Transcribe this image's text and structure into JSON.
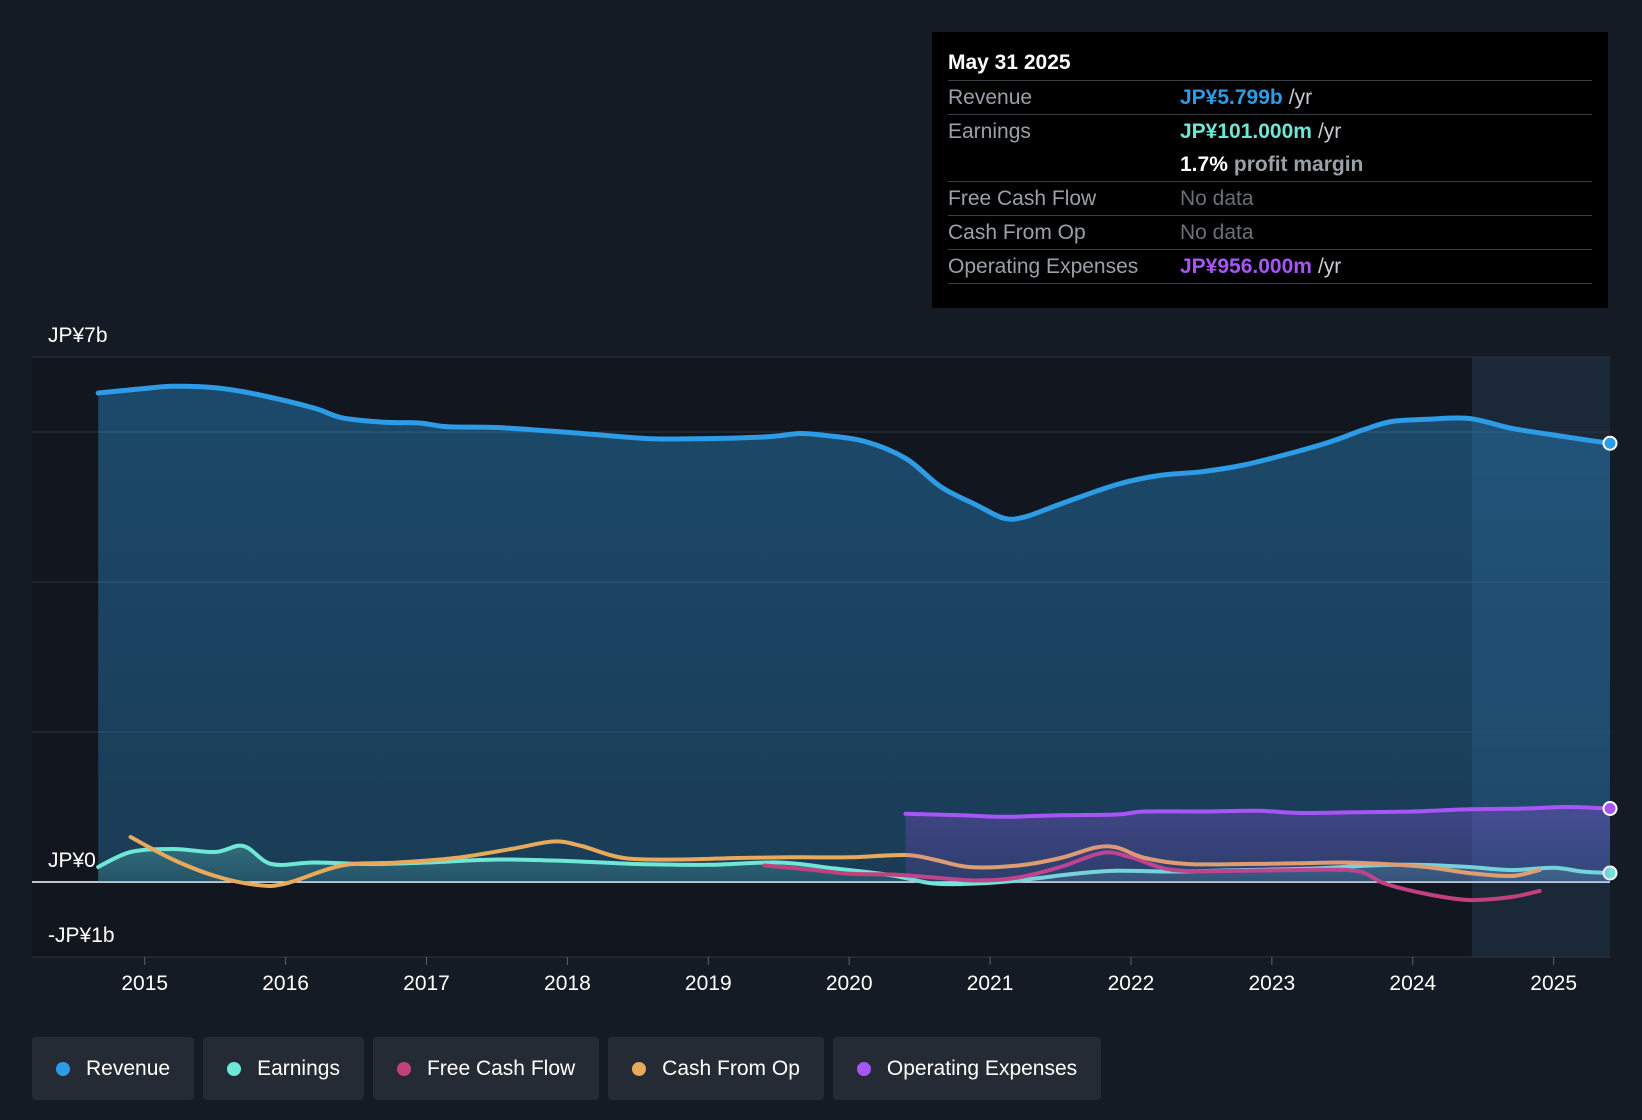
{
  "tooltip": {
    "date": "May 31 2025",
    "rows": [
      {
        "label": "Revenue",
        "value": "JP¥5.799b",
        "unit": "/yr",
        "color": "#2d9be5"
      },
      {
        "label": "Earnings",
        "value": "JP¥101.000m",
        "unit": "/yr",
        "color": "#6ee7d6"
      },
      {
        "label": "",
        "value": "1.7%",
        "unit": "profit margin",
        "color": "#ffffff"
      },
      {
        "label": "Free Cash Flow",
        "value": "No data",
        "unit": "",
        "color": "#6b7078"
      },
      {
        "label": "Cash From Op",
        "value": "No data",
        "unit": "",
        "color": "#6b7078"
      },
      {
        "label": "Operating Expenses",
        "value": "JP¥956.000m",
        "unit": "/yr",
        "color": "#a855f7"
      }
    ]
  },
  "legend": [
    {
      "label": "Revenue",
      "color": "#2d9be5"
    },
    {
      "label": "Earnings",
      "color": "#6ee7d6"
    },
    {
      "label": "Free Cash Flow",
      "color": "#c2417c"
    },
    {
      "label": "Cash From Op",
      "color": "#e8a95a"
    },
    {
      "label": "Operating Expenses",
      "color": "#a855f7"
    }
  ],
  "chart_data": {
    "type": "line",
    "title": "",
    "xlabel": "",
    "ylabel": "",
    "ylim": [
      -1.0,
      7.0
    ],
    "xlim": [
      2014.2,
      2025.4
    ],
    "y_axis_labels": [
      {
        "value": 7,
        "label": "JP¥7b"
      },
      {
        "value": 0,
        "label": "JP¥0"
      },
      {
        "value": -1,
        "label": "-JP¥1b"
      }
    ],
    "gridlines": [
      7,
      6,
      4,
      2,
      0,
      -1
    ],
    "x_ticks": [
      2015,
      2016,
      2017,
      2018,
      2019,
      2020,
      2021,
      2022,
      2023,
      2024,
      2025
    ],
    "x_tick_labels": [
      "2015",
      "2016",
      "2017",
      "2018",
      "2019",
      "2020",
      "2021",
      "2022",
      "2023",
      "2024",
      "2025"
    ],
    "forecast_start": 2024.42,
    "series": [
      {
        "name": "Revenue",
        "color": "#2d9be5",
        "area": true,
        "end_marker": true,
        "x": [
          2014.67,
          2015.0,
          2015.2,
          2015.5,
          2015.8,
          2016.2,
          2016.4,
          2016.7,
          2016.95,
          2017.15,
          2017.5,
          2017.9,
          2018.3,
          2018.6,
          2018.9,
          2019.2,
          2019.45,
          2019.65,
          2019.8,
          2020.1,
          2020.4,
          2020.65,
          2020.9,
          2021.1,
          2021.25,
          2021.5,
          2021.9,
          2022.2,
          2022.5,
          2022.8,
          2023.1,
          2023.4,
          2023.65,
          2023.85,
          2024.1,
          2024.4,
          2024.7,
          2025.0,
          2025.25,
          2025.4
        ],
        "values": [
          6.52,
          6.58,
          6.61,
          6.59,
          6.5,
          6.32,
          6.19,
          6.13,
          6.12,
          6.07,
          6.06,
          6.01,
          5.95,
          5.91,
          5.91,
          5.92,
          5.94,
          5.98,
          5.96,
          5.88,
          5.65,
          5.27,
          5.03,
          4.85,
          4.87,
          5.04,
          5.3,
          5.42,
          5.47,
          5.56,
          5.7,
          5.86,
          6.03,
          6.14,
          6.17,
          6.18,
          6.05,
          5.96,
          5.89,
          5.85
        ]
      },
      {
        "name": "Earnings",
        "color": "#6ee7d6",
        "area": true,
        "end_marker": true,
        "x": [
          2014.67,
          2014.9,
          2015.2,
          2015.5,
          2015.7,
          2015.9,
          2016.2,
          2016.6,
          2017.0,
          2017.5,
          2018.0,
          2018.5,
          2019.0,
          2019.5,
          2019.9,
          2020.3,
          2020.6,
          2020.9,
          2021.2,
          2021.6,
          2021.9,
          2022.3,
          2022.8,
          2023.3,
          2023.7,
          2024.0,
          2024.4,
          2024.7,
          2025.0,
          2025.2,
          2025.4
        ],
        "values": [
          0.2,
          0.4,
          0.44,
          0.4,
          0.48,
          0.24,
          0.26,
          0.24,
          0.26,
          0.3,
          0.28,
          0.24,
          0.23,
          0.26,
          0.18,
          0.09,
          -0.02,
          -0.02,
          0.02,
          0.11,
          0.15,
          0.14,
          0.16,
          0.18,
          0.22,
          0.23,
          0.2,
          0.16,
          0.19,
          0.14,
          0.12
        ]
      },
      {
        "name": "Free Cash Flow",
        "color": "#c2417c",
        "area": false,
        "end_marker": false,
        "x": [
          2019.4,
          2019.7,
          2020.0,
          2020.3,
          2020.6,
          2020.9,
          2021.2,
          2021.5,
          2021.8,
          2022.0,
          2022.3,
          2022.8,
          2023.2,
          2023.6,
          2023.8,
          2024.1,
          2024.4,
          2024.7,
          2024.9
        ],
        "values": [
          0.22,
          0.17,
          0.11,
          0.1,
          0.06,
          0.02,
          0.06,
          0.2,
          0.39,
          0.33,
          0.16,
          0.15,
          0.16,
          0.15,
          -0.02,
          -0.16,
          -0.24,
          -0.2,
          -0.12
        ]
      },
      {
        "name": "Cash From Op",
        "color": "#e8a95a",
        "area": false,
        "end_marker": false,
        "x": [
          2014.9,
          2015.2,
          2015.5,
          2015.8,
          2016.0,
          2016.4,
          2016.8,
          2017.2,
          2017.6,
          2017.9,
          2018.1,
          2018.4,
          2018.8,
          2019.2,
          2019.6,
          2020.0,
          2020.4,
          2020.6,
          2020.85,
          2021.2,
          2021.5,
          2021.75,
          2021.9,
          2022.1,
          2022.4,
          2022.8,
          2023.2,
          2023.5,
          2023.8,
          2024.1,
          2024.4,
          2024.7,
          2024.9
        ],
        "values": [
          0.6,
          0.3,
          0.08,
          -0.04,
          -0.02,
          0.22,
          0.26,
          0.32,
          0.44,
          0.54,
          0.48,
          0.32,
          0.3,
          0.32,
          0.33,
          0.33,
          0.36,
          0.3,
          0.2,
          0.22,
          0.32,
          0.46,
          0.46,
          0.32,
          0.24,
          0.24,
          0.25,
          0.26,
          0.24,
          0.2,
          0.12,
          0.08,
          0.16
        ]
      },
      {
        "name": "Operating Expenses",
        "color": "#a855f7",
        "area": true,
        "end_marker": true,
        "x": [
          2020.4,
          2020.8,
          2021.1,
          2021.5,
          2021.9,
          2022.1,
          2022.5,
          2022.9,
          2023.2,
          2023.6,
          2024.0,
          2024.4,
          2024.8,
          2025.1,
          2025.4
        ],
        "values": [
          0.91,
          0.89,
          0.87,
          0.89,
          0.9,
          0.94,
          0.94,
          0.95,
          0.92,
          0.93,
          0.94,
          0.97,
          0.98,
          1.0,
          0.98
        ]
      }
    ]
  }
}
